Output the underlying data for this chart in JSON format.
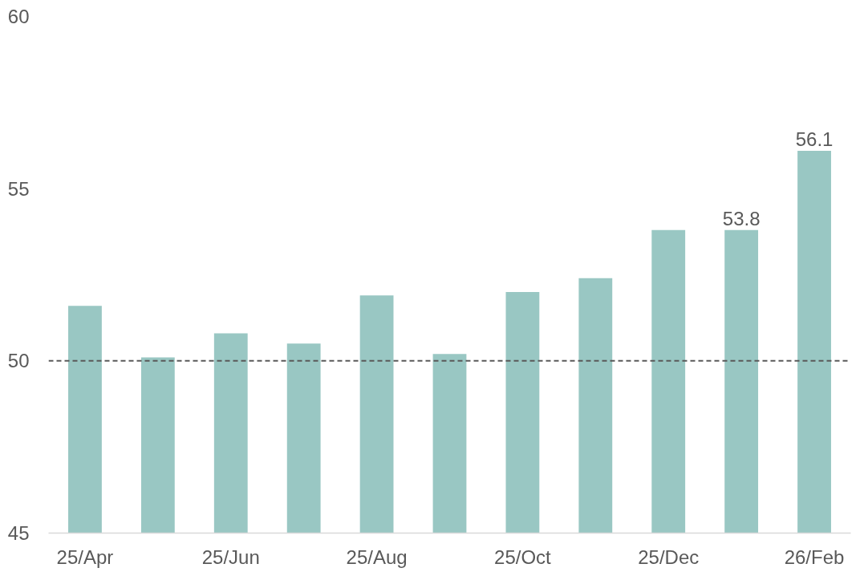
{
  "chart_data": {
    "type": "bar",
    "categories": [
      "25/Apr",
      null,
      "25/Jun",
      null,
      "25/Aug",
      null,
      "25/Oct",
      null,
      "25/Dec",
      null,
      "26/Feb"
    ],
    "values": [
      51.6,
      50.1,
      50.8,
      50.5,
      51.9,
      50.2,
      52.0,
      52.4,
      53.8,
      53.8,
      56.1
    ],
    "value_labels": [
      null,
      null,
      null,
      null,
      null,
      null,
      null,
      null,
      null,
      "53.8",
      "56.1"
    ],
    "color": "#99c7c3",
    "ylim": [
      45,
      60
    ],
    "yticks": [
      45,
      50,
      55,
      60
    ],
    "grid": false,
    "ref_lines": [
      {
        "axis": "y",
        "value": 50,
        "label": null,
        "color": "#595959",
        "line_style": "dashed"
      }
    ]
  }
}
